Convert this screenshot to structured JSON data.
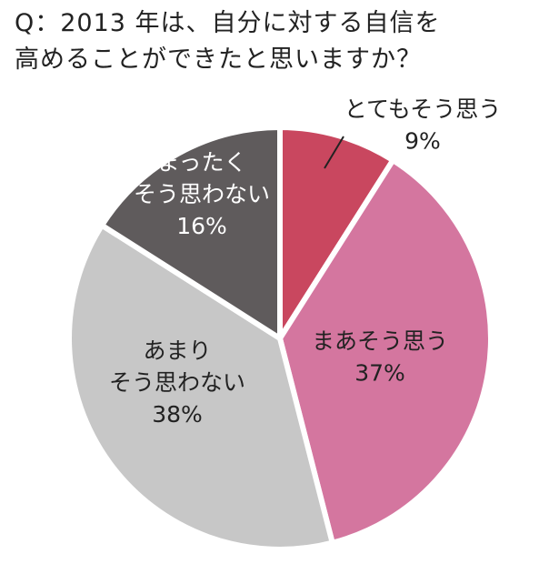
{
  "question": {
    "line1": "Q：2013 年は、自分に対する自信を",
    "line2": "高めることができたと思いますか？"
  },
  "chart_data": {
    "type": "pie",
    "title": "Q：2013 年は、自分に対する自信を高めることができたと思いますか？",
    "slices": [
      {
        "lines": [
          "とてもそう思う"
        ],
        "percent_label": "9%",
        "value": 9,
        "color": "#c9475f",
        "text_color": "#222222"
      },
      {
        "lines": [
          "まあそう思う"
        ],
        "percent_label": "37%",
        "value": 37,
        "color": "#d4769f",
        "text_color": "#222222"
      },
      {
        "lines": [
          "あまり",
          "そう思わない"
        ],
        "percent_label": "38%",
        "value": 38,
        "color": "#c7c7c7",
        "text_color": "#222222"
      },
      {
        "lines": [
          "まったく",
          "そう思わない"
        ],
        "percent_label": "16%",
        "value": 16,
        "color": "#5f5b5c",
        "text_color": "#ffffff"
      }
    ]
  }
}
